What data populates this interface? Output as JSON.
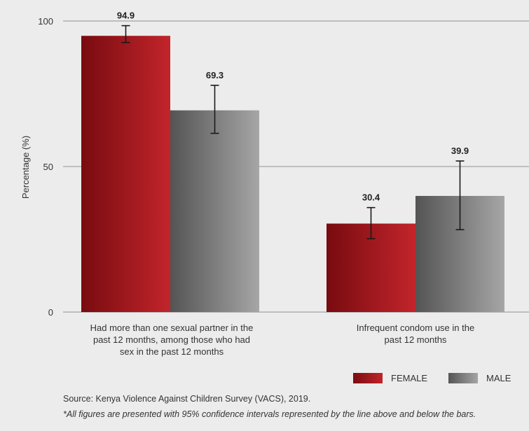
{
  "chart_data": {
    "type": "bar",
    "categories": [
      "Had more than one sexual partner in the past 12 months, among those who had sex in the past 12 months",
      "Infrequent condom use in the past 12 months"
    ],
    "category_lines": [
      [
        "Had more than one sexual partner in the",
        "past 12 months, among those who had",
        "sex in the past 12 months"
      ],
      [
        "Infrequent condom use in the",
        "past 12 months"
      ]
    ],
    "series": [
      {
        "name": "FEMALE",
        "values": [
          94.9,
          30.4
        ],
        "ci_low": [
          92.6,
          25.2
        ],
        "ci_high": [
          98.4,
          35.9
        ],
        "color": "#b01f25"
      },
      {
        "name": "MALE",
        "values": [
          69.3,
          39.9
        ],
        "ci_low": [
          61.4,
          28.3
        ],
        "ci_high": [
          77.9,
          51.9
        ],
        "color": "#7a7a7a"
      }
    ],
    "data_labels": [
      [
        "94.9",
        "30.4"
      ],
      [
        "69.3",
        "39.9"
      ]
    ],
    "ylabel": "Percentage (%)",
    "xlabel": "",
    "ylim": [
      0,
      100
    ],
    "yticks": [
      0,
      50,
      100
    ],
    "grid": true,
    "legend_position": "bottom-right"
  },
  "legend": {
    "female": "FEMALE",
    "male": "MALE"
  },
  "source": "Source: Kenya Violence Against Children Survey (VACS), 2019.",
  "note": "*All figures are presented with 95% confidence intervals represented by the line above and below the bars."
}
